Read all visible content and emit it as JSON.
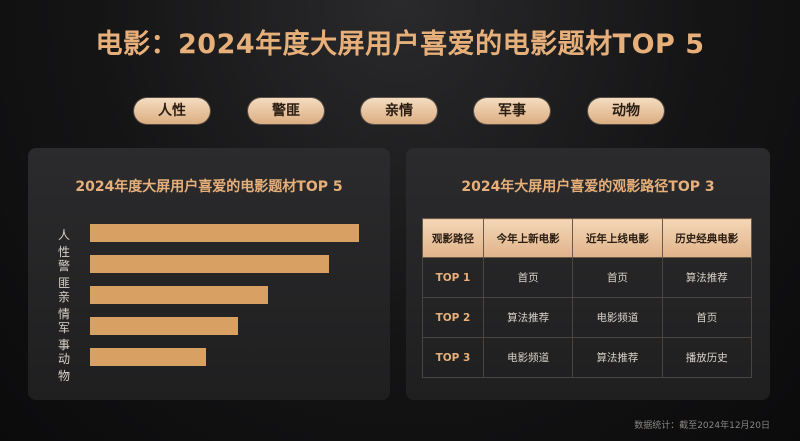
{
  "page": {
    "title": "电影：2024年度大屏用户喜爱的电影题材TOP 5",
    "footnote": "数据统计：截至2024年12月20日"
  },
  "tags": [
    "人性",
    "警匪",
    "亲情",
    "军事",
    "动物"
  ],
  "left_panel": {
    "title": "2024年度大屏用户喜爱的电影题材TOP 5"
  },
  "chart_data": {
    "type": "bar",
    "orientation": "horizontal",
    "title": "2024年度大屏用户喜爱的电影题材TOP 5",
    "categories": [
      "人性",
      "警匪",
      "亲情",
      "军事",
      "动物"
    ],
    "values": [
      100,
      89,
      66,
      55,
      43
    ],
    "xlabel": "",
    "ylabel": "",
    "grid": false,
    "colors": {
      "bar": "#d9a063"
    }
  },
  "right_panel": {
    "title": "2024年大屏用户喜爱的观影路径TOP 3",
    "table": {
      "headers": [
        "观影路径",
        "今年上新电影",
        "近年上线电影",
        "历史经典电影"
      ],
      "rows": [
        [
          "TOP 1",
          "首页",
          "首页",
          "算法推荐"
        ],
        [
          "TOP 2",
          "算法推荐",
          "电影频道",
          "首页"
        ],
        [
          "TOP 3",
          "电影频道",
          "算法推荐",
          "播放历史"
        ]
      ]
    }
  },
  "colors": {
    "accent": "#e7b07a",
    "bar": "#d9a063",
    "background": "#141415"
  }
}
